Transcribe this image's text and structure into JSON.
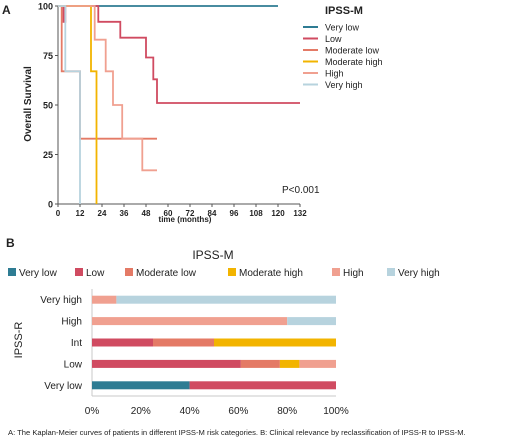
{
  "panel_a_label": "A",
  "panel_b_label": "B",
  "caption": "A: The Kaplan-Meier curves of patients in different IPSS-M risk categories. B: Clinical relevance by reclassification of IPSS-R to IPSS-M.",
  "colors": {
    "very_low": "#2e7c93",
    "low": "#d04b61",
    "moderate_low": "#e47a66",
    "moderate_high": "#f2b400",
    "high": "#f0a090",
    "very_high": "#b7d3de"
  },
  "chart_data": [
    {
      "type": "line",
      "subtype": "kaplan-meier",
      "title": "",
      "xlabel": "time (months)",
      "ylabel": "Overall Survival",
      "xlim": [
        0,
        132
      ],
      "ylim": [
        0,
        100
      ],
      "xticks": [
        "0",
        "12",
        "24",
        "36",
        "48",
        "60",
        "72",
        "84",
        "96",
        "108",
        "120",
        "132"
      ],
      "yticks": [
        "0",
        "25",
        "50",
        "75",
        "100"
      ],
      "legend_title": "IPSS-M",
      "legend_position": "right",
      "annotation": "P<0.001",
      "grid": false,
      "series": [
        {
          "name": "Very low",
          "color": "#2e7c93",
          "steps": [
            [
              0,
              100
            ],
            [
              120,
              100
            ]
          ]
        },
        {
          "name": "Low",
          "color": "#d04b61",
          "steps": [
            [
              0,
              100
            ],
            [
              3,
              100
            ],
            [
              3,
              92
            ],
            [
              4,
              92
            ],
            [
              4,
              100
            ],
            [
              22,
              100
            ],
            [
              22,
              92
            ],
            [
              34,
              92
            ],
            [
              34,
              84
            ],
            [
              48,
              84
            ],
            [
              48,
              74
            ],
            [
              52,
              74
            ],
            [
              52,
              63
            ],
            [
              54,
              63
            ],
            [
              54,
              51
            ],
            [
              132,
              51
            ]
          ]
        },
        {
          "name": "Moderate low",
          "color": "#e47a66",
          "steps": [
            [
              0,
              100
            ],
            [
              2,
              100
            ],
            [
              2,
              67
            ],
            [
              12,
              67
            ],
            [
              12,
              33
            ],
            [
              54,
              33
            ]
          ]
        },
        {
          "name": "Moderate high",
          "color": "#f2b400",
          "steps": [
            [
              0,
              100
            ],
            [
              18,
              100
            ],
            [
              18,
              67
            ],
            [
              21,
              67
            ],
            [
              21,
              0
            ]
          ]
        },
        {
          "name": "High",
          "color": "#f0a090",
          "steps": [
            [
              0,
              100
            ],
            [
              20,
              100
            ],
            [
              20,
              83
            ],
            [
              26,
              83
            ],
            [
              26,
              67
            ],
            [
              30,
              67
            ],
            [
              30,
              50
            ],
            [
              35,
              50
            ],
            [
              35,
              33
            ],
            [
              46,
              33
            ],
            [
              46,
              17
            ],
            [
              54,
              17
            ]
          ]
        },
        {
          "name": "Very high",
          "color": "#b7d3de",
          "steps": [
            [
              0,
              100
            ],
            [
              4,
              100
            ],
            [
              4,
              67
            ],
            [
              12,
              67
            ],
            [
              12,
              0
            ]
          ]
        }
      ]
    },
    {
      "type": "bar",
      "subtype": "stacked-horizontal-100",
      "title": "IPSS-M",
      "ylabel": "IPSS-R",
      "xlabel": "",
      "xticks": [
        "0%",
        "20%",
        "40%",
        "60%",
        "80%",
        "100%"
      ],
      "xlim": [
        0,
        100
      ],
      "legend_position": "top",
      "categories": [
        "Very high",
        "High",
        "Int",
        "Low",
        "Very low"
      ],
      "series": [
        {
          "name": "Very low",
          "color": "#2e7c93",
          "values": [
            0,
            0,
            0,
            0,
            40
          ]
        },
        {
          "name": "Low",
          "color": "#d04b61",
          "values": [
            0,
            0,
            25,
            61,
            60
          ]
        },
        {
          "name": "Moderate low",
          "color": "#e47a66",
          "values": [
            0,
            0,
            25,
            16,
            0
          ]
        },
        {
          "name": "Moderate high",
          "color": "#f2b400",
          "values": [
            0,
            0,
            50,
            8,
            0
          ]
        },
        {
          "name": "High",
          "color": "#f0a090",
          "values": [
            10,
            80,
            0,
            15,
            0
          ]
        },
        {
          "name": "Very high",
          "color": "#b7d3de",
          "values": [
            90,
            20,
            0,
            0,
            0
          ]
        }
      ]
    }
  ]
}
